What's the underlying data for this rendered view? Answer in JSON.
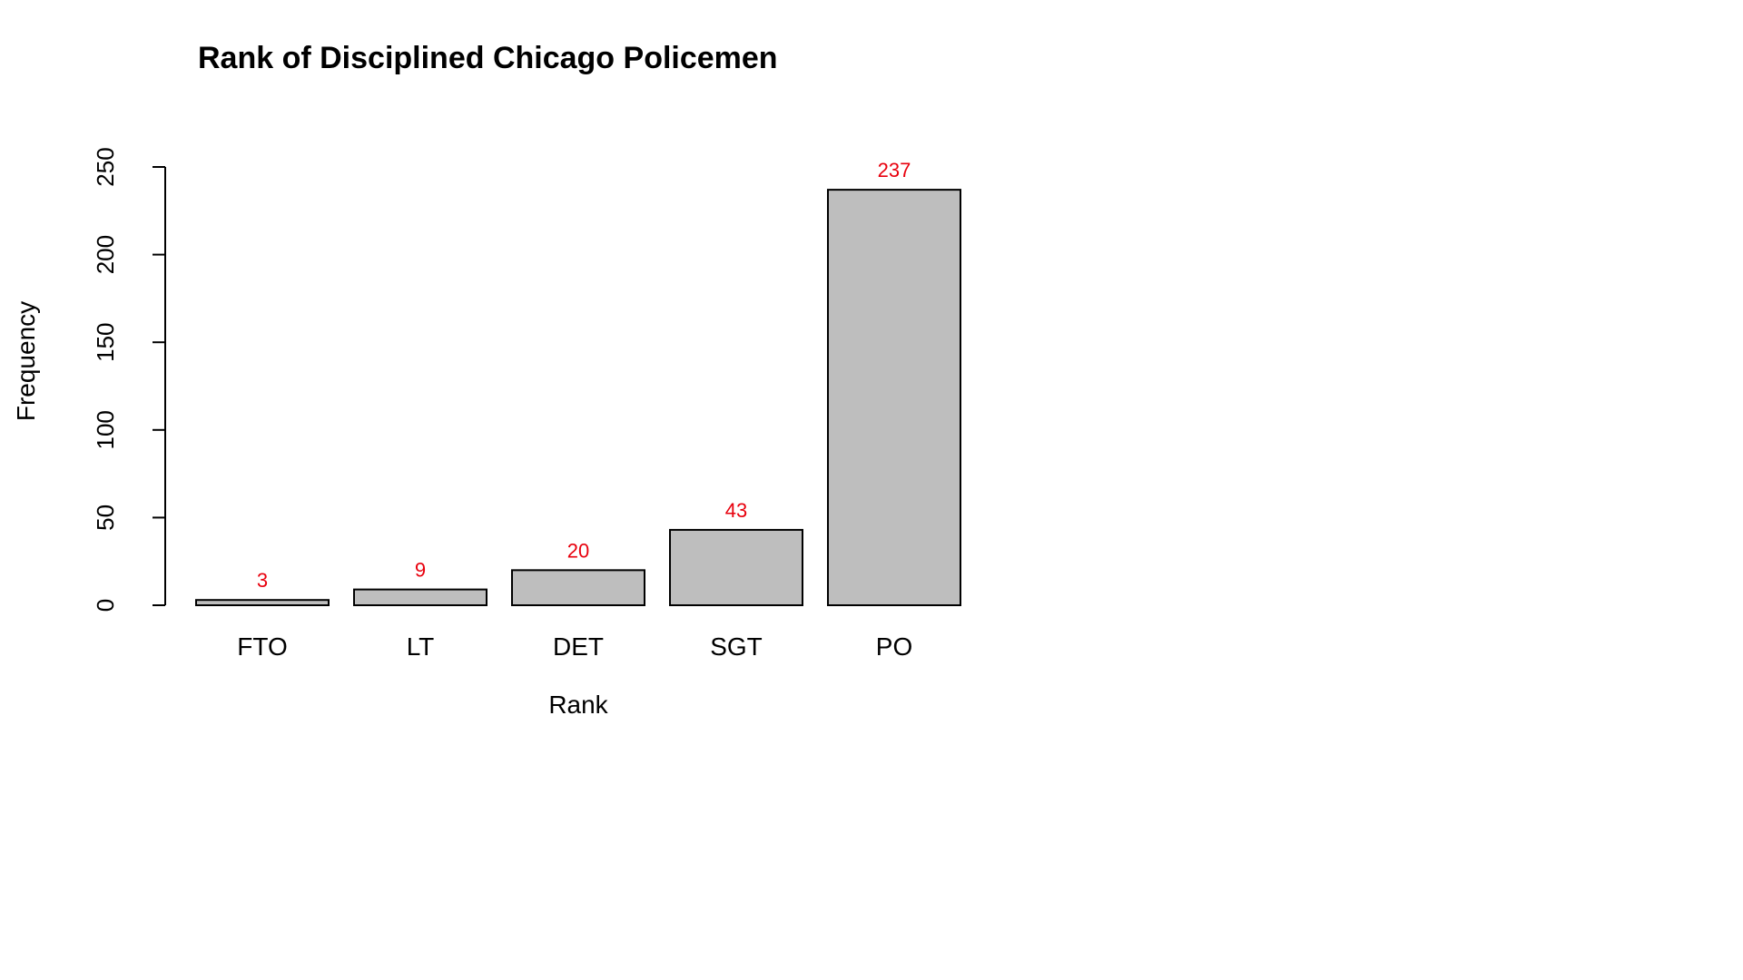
{
  "chart_data": {
    "type": "bar",
    "title": "Rank of Disciplined Chicago Policemen",
    "xlabel": "Rank",
    "ylabel": "Frequency",
    "categories": [
      "FTO",
      "LT",
      "DET",
      "SGT",
      "PO"
    ],
    "values": [
      3,
      9,
      20,
      43,
      237
    ],
    "data_labels": [
      "3",
      "9",
      "20",
      "43",
      "237"
    ],
    "ylim": [
      0,
      250
    ],
    "yticks": [
      0,
      50,
      100,
      150,
      200,
      250
    ],
    "ytick_labels": [
      "0",
      "50",
      "100",
      "150",
      "200",
      "250"
    ],
    "grid": false,
    "legend": "none",
    "colors": {
      "bar_fill": "#bebebe",
      "bar_stroke": "#000000",
      "data_label": "#e8000d",
      "axis": "#000000"
    }
  }
}
